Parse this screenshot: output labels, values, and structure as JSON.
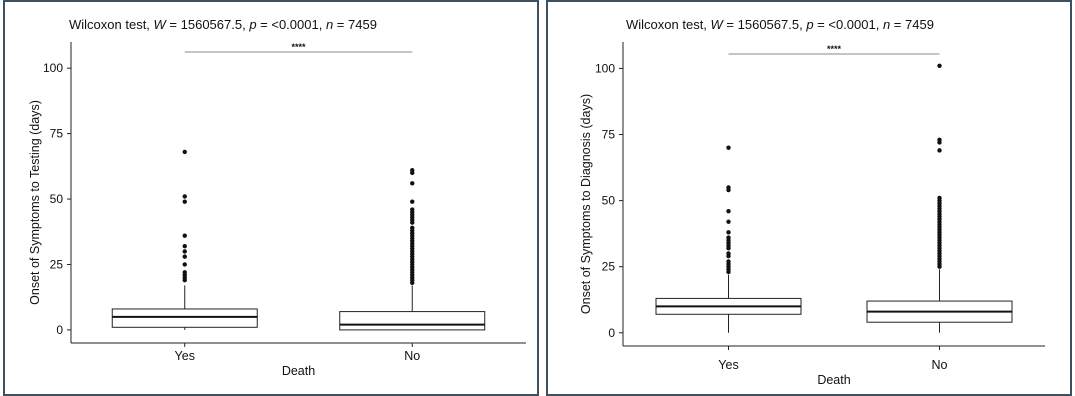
{
  "chart_data": [
    {
      "type": "box",
      "title": {
        "parts": [
          {
            "t": "Wilcoxon test, ",
            "i": false
          },
          {
            "t": "W",
            "i": true
          },
          {
            "t": " = 1560567.5, ",
            "i": false
          },
          {
            "t": "p",
            "i": true
          },
          {
            "t": " = <0.0001, ",
            "i": false
          },
          {
            "t": "n",
            "i": true
          },
          {
            "t": " = 7459",
            "i": false
          }
        ]
      },
      "xlabel": "Death",
      "ylabel": "Onset of Symptoms to Testing (days)",
      "categories": [
        "Yes",
        "No"
      ],
      "yticks": [
        0,
        25,
        50,
        75,
        100
      ],
      "ylim": [
        -5,
        110
      ],
      "significance": "****",
      "boxes": [
        {
          "category": "Yes",
          "q1": 1,
          "median": 5,
          "q3": 8,
          "whisker_low": 0,
          "whisker_high": 17,
          "outliers": [
            19,
            20,
            21,
            22,
            25,
            28,
            30,
            32,
            36,
            49,
            51,
            68
          ]
        },
        {
          "category": "No",
          "q1": 0,
          "median": 2,
          "q3": 7,
          "whisker_low": 0,
          "whisker_high": 17,
          "outliers": [
            18,
            19,
            20,
            21,
            22,
            23,
            24,
            25,
            26,
            27,
            28,
            29,
            30,
            31,
            32,
            33,
            34,
            35,
            36,
            37,
            38,
            39,
            41,
            42,
            43,
            44,
            45,
            46,
            49,
            56,
            60,
            61
          ]
        }
      ]
    },
    {
      "type": "box",
      "title": {
        "parts": [
          {
            "t": "Wilcoxon test, ",
            "i": false
          },
          {
            "t": "W",
            "i": true
          },
          {
            "t": " = 1560567.5, ",
            "i": false
          },
          {
            "t": "p",
            "i": true
          },
          {
            "t": " = <0.0001, ",
            "i": false
          },
          {
            "t": "n",
            "i": true
          },
          {
            "t": " = 7459",
            "i": false
          }
        ]
      },
      "xlabel": "Death",
      "ylabel": "Onset of Symptoms to Diagnosis (days)",
      "categories": [
        "Yes",
        "No"
      ],
      "yticks": [
        0,
        25,
        50,
        75,
        100
      ],
      "ylim": [
        -5,
        110
      ],
      "significance": "****",
      "boxes": [
        {
          "category": "Yes",
          "q1": 7,
          "median": 10,
          "q3": 13,
          "whisker_low": 0,
          "whisker_high": 22,
          "outliers": [
            23,
            24,
            25,
            26,
            27,
            29,
            30,
            32,
            33,
            34,
            35,
            36,
            38,
            42,
            46,
            54,
            55,
            70
          ]
        },
        {
          "category": "No",
          "q1": 4,
          "median": 8,
          "q3": 12,
          "whisker_low": 0,
          "whisker_high": 24,
          "outliers": [
            25,
            26,
            27,
            28,
            29,
            30,
            31,
            32,
            33,
            34,
            35,
            36,
            37,
            38,
            39,
            40,
            41,
            42,
            43,
            44,
            45,
            46,
            47,
            48,
            49,
            50,
            51,
            69,
            72,
            73,
            101
          ]
        }
      ]
    }
  ]
}
